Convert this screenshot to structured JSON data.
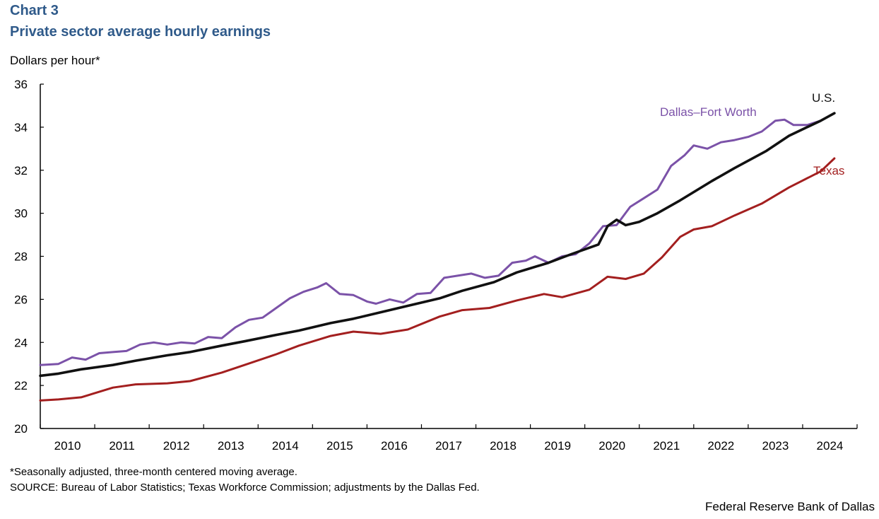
{
  "header": {
    "chart_number": "Chart 3",
    "title": "Private sector average hourly earnings"
  },
  "footer": {
    "note": "*Seasonally adjusted, three-month centered moving average.",
    "source": "SOURCE: Bureau of Labor Statistics; Texas Workforce Commission; adjustments by the Dallas Fed.",
    "brand": "Federal Reserve Bank of Dallas"
  },
  "colors": {
    "dfw": "#7b52a8",
    "us": "#111111",
    "texas": "#a31f1f",
    "title": "#2f5a8a"
  },
  "chart_data": {
    "type": "line",
    "title": "Private sector average hourly earnings",
    "ylabel": "Dollars per hour*",
    "xlabel": "",
    "ylim": [
      20,
      36
    ],
    "yticks": [
      20,
      22,
      24,
      26,
      28,
      30,
      32,
      34,
      36
    ],
    "xlim": [
      "2009-09",
      "2024-09"
    ],
    "x_tick_labels": [
      "2010",
      "2011",
      "2012",
      "2013",
      "2014",
      "2015",
      "2016",
      "2017",
      "2018",
      "2019",
      "2020",
      "2021",
      "2022",
      "2023",
      "2024"
    ],
    "grid": false,
    "legend": "none",
    "series": [
      {
        "name": "Dallas–Fort Worth",
        "color": "#7b52a8",
        "points": [
          [
            "2009-09",
            22.95
          ],
          [
            "2010-01",
            23.0
          ],
          [
            "2010-04",
            23.3
          ],
          [
            "2010-07",
            23.2
          ],
          [
            "2010-10",
            23.5
          ],
          [
            "2011-01",
            23.55
          ],
          [
            "2011-04",
            23.6
          ],
          [
            "2011-07",
            23.9
          ],
          [
            "2011-10",
            24.0
          ],
          [
            "2012-01",
            23.9
          ],
          [
            "2012-04",
            24.0
          ],
          [
            "2012-07",
            23.95
          ],
          [
            "2012-10",
            24.25
          ],
          [
            "2013-01",
            24.2
          ],
          [
            "2013-04",
            24.7
          ],
          [
            "2013-07",
            25.05
          ],
          [
            "2013-10",
            25.15
          ],
          [
            "2014-01",
            25.6
          ],
          [
            "2014-04",
            26.05
          ],
          [
            "2014-07",
            26.35
          ],
          [
            "2014-10",
            26.55
          ],
          [
            "2014-12",
            26.75
          ],
          [
            "2015-03",
            26.25
          ],
          [
            "2015-06",
            26.2
          ],
          [
            "2015-09",
            25.9
          ],
          [
            "2015-11",
            25.8
          ],
          [
            "2016-02",
            26.0
          ],
          [
            "2016-05",
            25.85
          ],
          [
            "2016-08",
            26.25
          ],
          [
            "2016-11",
            26.3
          ],
          [
            "2017-02",
            27.0
          ],
          [
            "2017-05",
            27.1
          ],
          [
            "2017-08",
            27.2
          ],
          [
            "2017-11",
            27.0
          ],
          [
            "2018-02",
            27.1
          ],
          [
            "2018-05",
            27.7
          ],
          [
            "2018-08",
            27.8
          ],
          [
            "2018-10",
            28.0
          ],
          [
            "2019-01",
            27.7
          ],
          [
            "2019-04",
            28.0
          ],
          [
            "2019-07",
            28.1
          ],
          [
            "2019-10",
            28.6
          ],
          [
            "2020-01",
            29.4
          ],
          [
            "2020-04",
            29.45
          ],
          [
            "2020-07",
            30.3
          ],
          [
            "2020-10",
            30.7
          ],
          [
            "2021-01",
            31.1
          ],
          [
            "2021-04",
            32.2
          ],
          [
            "2021-07",
            32.7
          ],
          [
            "2021-09",
            33.15
          ],
          [
            "2021-12",
            33.0
          ],
          [
            "2022-03",
            33.3
          ],
          [
            "2022-06",
            33.4
          ],
          [
            "2022-09",
            33.55
          ],
          [
            "2022-12",
            33.8
          ],
          [
            "2023-03",
            34.3
          ],
          [
            "2023-05",
            34.35
          ],
          [
            "2023-07",
            34.1
          ],
          [
            "2023-10",
            34.1
          ],
          [
            "2024-01",
            34.3
          ]
        ]
      },
      {
        "name": "U.S.",
        "color": "#111111",
        "points": [
          [
            "2009-09",
            22.45
          ],
          [
            "2010-01",
            22.55
          ],
          [
            "2010-06",
            22.75
          ],
          [
            "2011-01",
            22.95
          ],
          [
            "2011-06",
            23.15
          ],
          [
            "2012-01",
            23.4
          ],
          [
            "2012-06",
            23.55
          ],
          [
            "2013-01",
            23.85
          ],
          [
            "2013-06",
            24.05
          ],
          [
            "2014-01",
            24.35
          ],
          [
            "2014-06",
            24.55
          ],
          [
            "2015-01",
            24.9
          ],
          [
            "2015-06",
            25.1
          ],
          [
            "2016-01",
            25.45
          ],
          [
            "2016-06",
            25.7
          ],
          [
            "2017-01",
            26.05
          ],
          [
            "2017-06",
            26.4
          ],
          [
            "2018-01",
            26.8
          ],
          [
            "2018-06",
            27.25
          ],
          [
            "2019-01",
            27.7
          ],
          [
            "2019-06",
            28.1
          ],
          [
            "2019-12",
            28.55
          ],
          [
            "2020-02",
            29.4
          ],
          [
            "2020-04",
            29.7
          ],
          [
            "2020-06",
            29.45
          ],
          [
            "2020-09",
            29.6
          ],
          [
            "2021-01",
            30.0
          ],
          [
            "2021-06",
            30.6
          ],
          [
            "2022-01",
            31.5
          ],
          [
            "2022-06",
            32.1
          ],
          [
            "2023-01",
            32.9
          ],
          [
            "2023-06",
            33.6
          ],
          [
            "2024-01",
            34.3
          ],
          [
            "2024-04",
            34.65
          ]
        ]
      },
      {
        "name": "Texas",
        "color": "#a31f1f",
        "points": [
          [
            "2009-09",
            21.3
          ],
          [
            "2010-01",
            21.35
          ],
          [
            "2010-06",
            21.45
          ],
          [
            "2011-01",
            21.9
          ],
          [
            "2011-06",
            22.05
          ],
          [
            "2012-01",
            22.1
          ],
          [
            "2012-06",
            22.2
          ],
          [
            "2013-01",
            22.6
          ],
          [
            "2013-06",
            22.95
          ],
          [
            "2014-01",
            23.45
          ],
          [
            "2014-06",
            23.85
          ],
          [
            "2015-01",
            24.3
          ],
          [
            "2015-06",
            24.5
          ],
          [
            "2015-12",
            24.4
          ],
          [
            "2016-06",
            24.6
          ],
          [
            "2017-01",
            25.2
          ],
          [
            "2017-06",
            25.5
          ],
          [
            "2017-12",
            25.6
          ],
          [
            "2018-06",
            25.95
          ],
          [
            "2018-12",
            26.25
          ],
          [
            "2019-04",
            26.1
          ],
          [
            "2019-10",
            26.45
          ],
          [
            "2020-02",
            27.05
          ],
          [
            "2020-06",
            26.95
          ],
          [
            "2020-10",
            27.2
          ],
          [
            "2021-02",
            27.95
          ],
          [
            "2021-06",
            28.9
          ],
          [
            "2021-09",
            29.25
          ],
          [
            "2022-01",
            29.4
          ],
          [
            "2022-06",
            29.9
          ],
          [
            "2022-12",
            30.45
          ],
          [
            "2023-06",
            31.2
          ],
          [
            "2024-01",
            31.95
          ],
          [
            "2024-04",
            32.55
          ]
        ]
      }
    ],
    "series_labels": [
      "Dallas–Fort Worth",
      "U.S.",
      "Texas"
    ]
  }
}
